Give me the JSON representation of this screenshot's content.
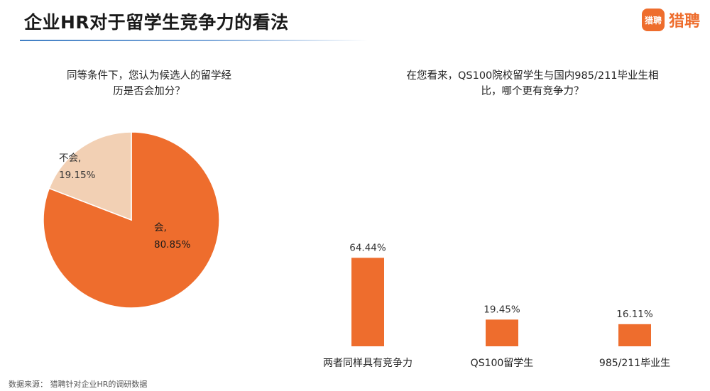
{
  "header": {
    "title": "企业HR对于留学生竞争力的看法",
    "brand_logo_text": "猎聘",
    "brand_name": "猎聘"
  },
  "pie_question": "同等条件下，您认为候选人的留学经历是否会加分？",
  "bar_question": "在您看来，QS100院校留学生与国内985/211毕业生相比，哪个更有竞争力？",
  "footer": {
    "source": "数据来源： 猎聘针对企业HR的调研数据"
  },
  "colors": {
    "accent": "#ee6d2d",
    "pie_minor": "#f2d0b4",
    "title_rule": "#3f7ec4"
  },
  "chart_data": [
    {
      "type": "pie",
      "question": "同等条件下，您认为候选人的留学经历是否会加分？",
      "slices": [
        {
          "label": "会,",
          "value": 80.85,
          "value_label": "80.85%",
          "color": "#ee6d2d"
        },
        {
          "label": "不会,",
          "value": 19.15,
          "value_label": "19.15%",
          "color": "#f2d0b4"
        }
      ]
    },
    {
      "type": "bar",
      "question": "在您看来，QS100院校留学生与国内985/211毕业生相比，哪个更有竞争力？",
      "categories": [
        "两者同样具有竞争力",
        "QS100留学生",
        "985/211毕业生"
      ],
      "values": [
        64.44,
        19.45,
        16.11
      ],
      "value_labels": [
        "64.44%",
        "19.45%",
        "16.11%"
      ],
      "color": "#ee6d2d",
      "ylim": [
        0,
        100
      ],
      "grid": false
    }
  ]
}
